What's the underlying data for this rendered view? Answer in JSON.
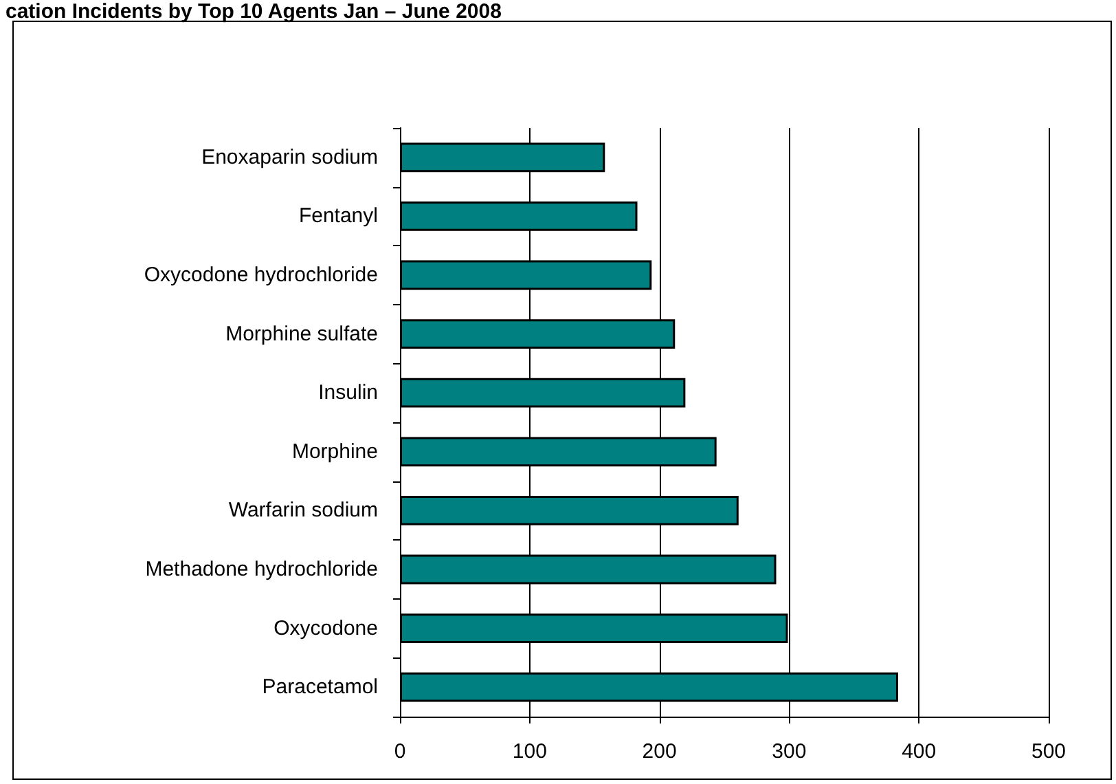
{
  "chart_data": {
    "type": "bar",
    "orientation": "horizontal",
    "title": "cation Incidents by Top 10 Agents Jan – June 2008",
    "categories": [
      "Enoxaparin sodium",
      "Fentanyl",
      "Oxycodone hydrochloride",
      "Morphine sulfate",
      "Insulin",
      "Morphine",
      "Warfarin sodium",
      "Methadone hydrochloride",
      "Oxycodone",
      "Paracetamol"
    ],
    "values": [
      158,
      183,
      194,
      212,
      220,
      244,
      261,
      290,
      299,
      384
    ],
    "color": "#008080",
    "xlim": [
      0,
      500
    ],
    "xticks": [
      0,
      100,
      200,
      300,
      400,
      500
    ],
    "grid": "x"
  }
}
